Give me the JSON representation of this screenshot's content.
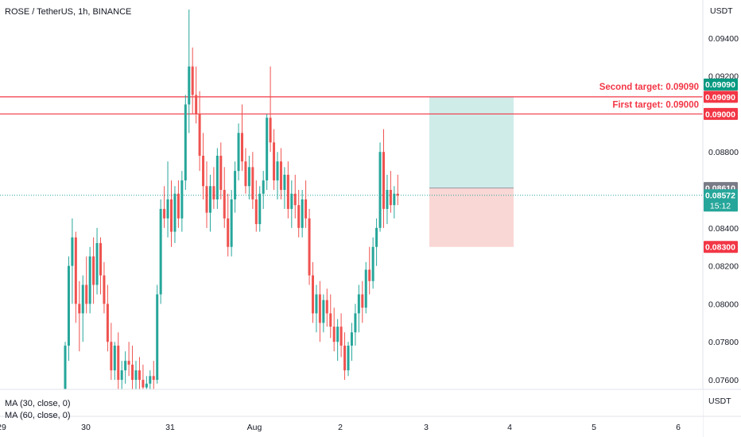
{
  "header": {
    "title": "ROSE / TetherUS, 1h, BINANCE"
  },
  "axis": {
    "currency_top": "USDT",
    "currency_bottom": "USDT"
  },
  "indicators": [
    "MA (30, close, 0)",
    "MA (60, close, 0)"
  ],
  "countdown": "15:12",
  "colors": {
    "up": "#26a69a",
    "down": "#ef5350",
    "target_line": "#f23645",
    "profit_zone": "#cfece9",
    "loss_zone": "#f9d7d5",
    "last_price_line": "#26a69a"
  },
  "chart_data": {
    "type": "candlestick",
    "symbol": "ROSE / TetherUS",
    "interval": "1h",
    "exchange": "BINANCE",
    "ylim": [
      0.0755,
      0.096
    ],
    "y_ticks": [
      "0.09400",
      "0.09200",
      "0.08800",
      "0.08400",
      "0.08200",
      "0.08000",
      "0.07800",
      "0.07600"
    ],
    "x_ticks": [
      "29",
      "30",
      "31",
      "Aug",
      "2",
      "3",
      "4",
      "5",
      "6"
    ],
    "last_price": "0.08572",
    "entry_price": "0.08610",
    "stop_price": "0.08300",
    "targets": [
      {
        "label": "Second target: 0.09090",
        "price": "0.09090"
      },
      {
        "label": "First target: 0.09000",
        "price": "0.09000"
      }
    ],
    "candles": [
      [
        0.0752,
        0.078,
        0.075,
        0.0778
      ],
      [
        0.0778,
        0.0825,
        0.077,
        0.082
      ],
      [
        0.082,
        0.0845,
        0.08,
        0.0835
      ],
      [
        0.0835,
        0.0838,
        0.079,
        0.08
      ],
      [
        0.08,
        0.0812,
        0.0775,
        0.0795
      ],
      [
        0.0795,
        0.0815,
        0.078,
        0.081
      ],
      [
        0.081,
        0.0825,
        0.0795,
        0.08
      ],
      [
        0.08,
        0.083,
        0.0795,
        0.0825
      ],
      [
        0.0825,
        0.0835,
        0.08,
        0.081
      ],
      [
        0.081,
        0.084,
        0.0805,
        0.0832
      ],
      [
        0.0832,
        0.0835,
        0.0805,
        0.0815
      ],
      [
        0.0815,
        0.0822,
        0.0795,
        0.08
      ],
      [
        0.08,
        0.081,
        0.0775,
        0.078
      ],
      [
        0.078,
        0.079,
        0.076,
        0.0765
      ],
      [
        0.0765,
        0.078,
        0.076,
        0.0778
      ],
      [
        0.0778,
        0.0785,
        0.0755,
        0.076
      ],
      [
        0.076,
        0.077,
        0.075,
        0.0765
      ],
      [
        0.0765,
        0.0775,
        0.0758,
        0.077
      ],
      [
        0.077,
        0.078,
        0.0762,
        0.0768
      ],
      [
        0.0768,
        0.0778,
        0.0755,
        0.076
      ],
      [
        0.076,
        0.077,
        0.0755,
        0.0765
      ],
      [
        0.0765,
        0.0772,
        0.0755,
        0.076
      ],
      [
        0.076,
        0.0768,
        0.0752,
        0.0756
      ],
      [
        0.0756,
        0.0762,
        0.075,
        0.0758
      ],
      [
        0.0758,
        0.0765,
        0.0752,
        0.0762
      ],
      [
        0.0762,
        0.077,
        0.0755,
        0.076
      ],
      [
        0.076,
        0.081,
        0.0758,
        0.0805
      ],
      [
        0.0805,
        0.0855,
        0.08,
        0.085
      ],
      [
        0.085,
        0.0862,
        0.084,
        0.0845
      ],
      [
        0.0845,
        0.0875,
        0.0835,
        0.0855
      ],
      [
        0.0855,
        0.0865,
        0.083,
        0.0838
      ],
      [
        0.0838,
        0.0862,
        0.0832,
        0.0858
      ],
      [
        0.0858,
        0.0865,
        0.084,
        0.0845
      ],
      [
        0.0845,
        0.087,
        0.0838,
        0.0865
      ],
      [
        0.0865,
        0.091,
        0.086,
        0.0905
      ],
      [
        0.0905,
        0.0955,
        0.089,
        0.0925
      ],
      [
        0.0925,
        0.0935,
        0.09,
        0.091
      ],
      [
        0.091,
        0.0925,
        0.0895,
        0.09
      ],
      [
        0.09,
        0.0912,
        0.087,
        0.0878
      ],
      [
        0.0878,
        0.089,
        0.0855,
        0.0862
      ],
      [
        0.0862,
        0.0875,
        0.084,
        0.0848
      ],
      [
        0.0848,
        0.0868,
        0.0838,
        0.0862
      ],
      [
        0.0862,
        0.0872,
        0.085,
        0.0855
      ],
      [
        0.0855,
        0.0882,
        0.085,
        0.0878
      ],
      [
        0.0878,
        0.0885,
        0.0855,
        0.086
      ],
      [
        0.086,
        0.0872,
        0.084,
        0.0845
      ],
      [
        0.0845,
        0.0858,
        0.0825,
        0.083
      ],
      [
        0.083,
        0.086,
        0.0825,
        0.0855
      ],
      [
        0.0855,
        0.0875,
        0.0848,
        0.087
      ],
      [
        0.087,
        0.0895,
        0.0865,
        0.089
      ],
      [
        0.089,
        0.0905,
        0.087,
        0.0875
      ],
      [
        0.0875,
        0.0882,
        0.0858,
        0.0862
      ],
      [
        0.0862,
        0.0878,
        0.0855,
        0.0872
      ],
      [
        0.0872,
        0.088,
        0.085,
        0.0855
      ],
      [
        0.0855,
        0.0865,
        0.0838,
        0.0842
      ],
      [
        0.0842,
        0.0862,
        0.0838,
        0.0858
      ],
      [
        0.0858,
        0.087,
        0.085,
        0.0865
      ],
      [
        0.0865,
        0.09,
        0.086,
        0.0898
      ],
      [
        0.0898,
        0.0925,
        0.088,
        0.0885
      ],
      [
        0.0885,
        0.0892,
        0.086,
        0.0865
      ],
      [
        0.0865,
        0.088,
        0.0855,
        0.0875
      ],
      [
        0.0875,
        0.0882,
        0.0855,
        0.086
      ],
      [
        0.086,
        0.0872,
        0.085,
        0.0868
      ],
      [
        0.0868,
        0.0875,
        0.0845,
        0.085
      ],
      [
        0.085,
        0.0865,
        0.084,
        0.0858
      ],
      [
        0.0858,
        0.0868,
        0.0845,
        0.0852
      ],
      [
        0.0852,
        0.086,
        0.0835,
        0.084
      ],
      [
        0.084,
        0.086,
        0.0835,
        0.0855
      ],
      [
        0.0855,
        0.0865,
        0.084,
        0.0845
      ],
      [
        0.0845,
        0.085,
        0.081,
        0.0815
      ],
      [
        0.0815,
        0.0822,
        0.079,
        0.0795
      ],
      [
        0.0795,
        0.081,
        0.0785,
        0.0805
      ],
      [
        0.0805,
        0.0812,
        0.078,
        0.079
      ],
      [
        0.079,
        0.0805,
        0.0785,
        0.0802
      ],
      [
        0.0802,
        0.0808,
        0.0788,
        0.0795
      ],
      [
        0.0795,
        0.0805,
        0.0782,
        0.0788
      ],
      [
        0.0788,
        0.0798,
        0.0775,
        0.078
      ],
      [
        0.078,
        0.0792,
        0.077,
        0.0788
      ],
      [
        0.0788,
        0.0795,
        0.0772,
        0.0778
      ],
      [
        0.0778,
        0.0785,
        0.076,
        0.0765
      ],
      [
        0.0765,
        0.078,
        0.0762,
        0.0778
      ],
      [
        0.0778,
        0.079,
        0.077,
        0.0785
      ],
      [
        0.0785,
        0.08,
        0.0778,
        0.0795
      ],
      [
        0.0795,
        0.081,
        0.0785,
        0.0805
      ],
      [
        0.0805,
        0.0812,
        0.079,
        0.0798
      ],
      [
        0.0798,
        0.0822,
        0.0795,
        0.0818
      ],
      [
        0.0818,
        0.083,
        0.0805,
        0.0812
      ],
      [
        0.0812,
        0.0835,
        0.0808,
        0.083
      ],
      [
        0.083,
        0.0845,
        0.082,
        0.084
      ],
      [
        0.084,
        0.0885,
        0.0838,
        0.088
      ],
      [
        0.088,
        0.0892,
        0.084,
        0.085
      ],
      [
        0.085,
        0.0868,
        0.0842,
        0.086
      ],
      [
        0.086,
        0.087,
        0.0848,
        0.0852
      ],
      [
        0.0852,
        0.0862,
        0.0845,
        0.0858
      ],
      [
        0.0858,
        0.0868,
        0.0852,
        0.0857
      ]
    ]
  }
}
